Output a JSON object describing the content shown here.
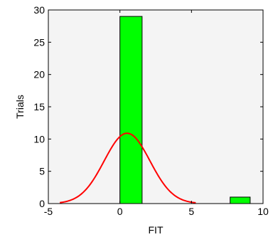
{
  "chart_data": {
    "type": "bar",
    "title": "",
    "xlabel": "FIT",
    "ylabel": "Trials",
    "xlim": [
      -5,
      10
    ],
    "ylim": [
      0,
      30
    ],
    "xticks": [
      "-5",
      "0",
      "5",
      "10"
    ],
    "yticks": [
      "0",
      "5",
      "10",
      "15",
      "20",
      "25",
      "30"
    ],
    "grid": false,
    "bars": [
      {
        "x_start": 0,
        "x_end": 1.55,
        "value": 29
      },
      {
        "x_start": 7.7,
        "x_end": 9.1,
        "value": 1
      }
    ],
    "fit_curve": {
      "type": "normal",
      "mean": 0.5,
      "sd": 1.6,
      "peak": 10.9,
      "x_range": [
        -4.2,
        5.3
      ]
    },
    "colors": {
      "plot_background": "#f4f4f4",
      "bar_fill": "#00ff00",
      "bar_edge": "#000000",
      "curve": "#ff0000"
    }
  }
}
